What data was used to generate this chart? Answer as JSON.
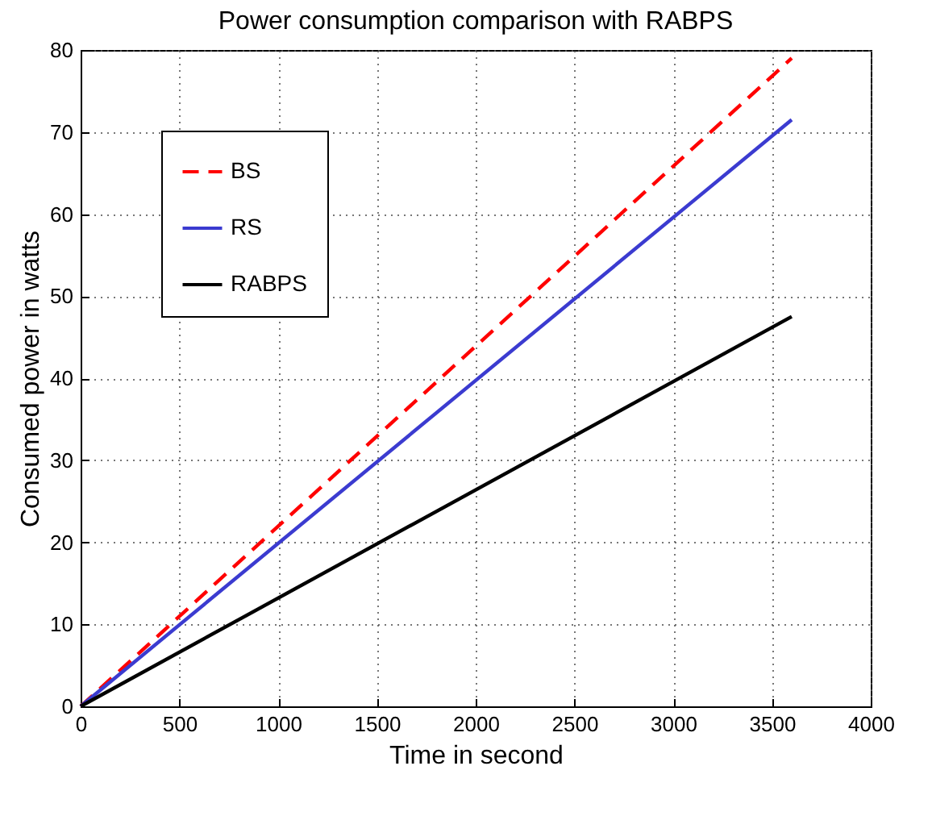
{
  "chart_data": {
    "type": "line",
    "title": "Power consumption comparison with RABPS",
    "xlabel": "Time in second",
    "ylabel": "Consumed power in watts",
    "x": [
      0,
      3600
    ],
    "series": [
      {
        "name": "BS",
        "color": "#ff0000",
        "line_style": "dashed",
        "values": [
          0,
          79
        ]
      },
      {
        "name": "RS",
        "color": "#3b3bd0",
        "line_style": "solid",
        "values": [
          0,
          71.5
        ]
      },
      {
        "name": "RABPS",
        "color": "#000000",
        "line_style": "solid",
        "values": [
          0,
          47.5
        ]
      }
    ],
    "xlim": [
      0,
      4000
    ],
    "xticks": [
      0,
      500,
      1000,
      1500,
      2000,
      2500,
      3000,
      3500,
      4000
    ],
    "ylim": [
      0,
      80
    ],
    "yticks": [
      0,
      10,
      20,
      30,
      40,
      50,
      60,
      70,
      80
    ],
    "grid": true,
    "legend": "top left"
  }
}
